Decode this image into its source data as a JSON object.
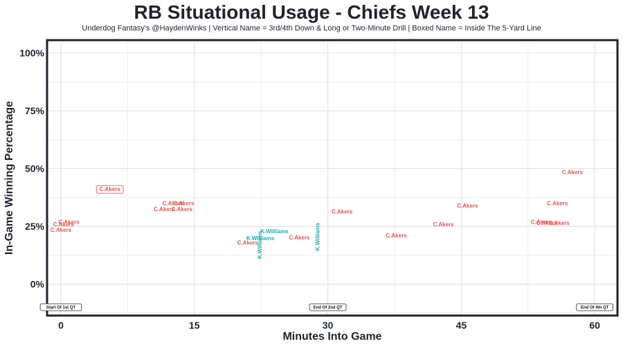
{
  "chart_data": {
    "type": "scatter",
    "title": "RB Situational Usage - Chiefs Week 13",
    "subtitle": "Underdog Fantasy's @HaydenWinks | Vertical Name = 3rd/4th Down & Long or Two-Minute Drill | Boxed Name = Inside The 5-Yard Line",
    "xlabel": "Minutes Into Game",
    "ylabel": "In-Game Winning Percentage",
    "xlim": [
      -1.4,
      62.4
    ],
    "ylim": [
      -13,
      105
    ],
    "x_ticks": [
      0,
      15,
      30,
      45,
      60
    ],
    "x_tick_labels": [
      "0",
      "15",
      "30",
      "45",
      "60"
    ],
    "y_ticks": [
      0,
      25,
      50,
      75,
      100
    ],
    "y_tick_labels": [
      "0%",
      "25%",
      "50%",
      "75%",
      "100%"
    ],
    "grid": true,
    "colors": {
      "C.Akers": "#e8534a",
      "K.Williams": "#1aadb4"
    },
    "points": [
      {
        "x": 0.0,
        "y": 23.5,
        "label": "C.Akers",
        "style": "normal"
      },
      {
        "x": 0.3,
        "y": 26.0,
        "label": "C.Akers",
        "style": "normal"
      },
      {
        "x": 0.9,
        "y": 27.0,
        "label": "C.Akers",
        "style": "normal"
      },
      {
        "x": 5.5,
        "y": 41.0,
        "label": "C.Akers",
        "style": "boxed"
      },
      {
        "x": 11.6,
        "y": 32.5,
        "label": "C.Akers",
        "style": "normal"
      },
      {
        "x": 12.6,
        "y": 35.0,
        "label": "C.Akers",
        "style": "normal"
      },
      {
        "x": 13.6,
        "y": 32.5,
        "label": "C.Akers",
        "style": "normal"
      },
      {
        "x": 13.8,
        "y": 35.0,
        "label": "C.Akers",
        "style": "normal"
      },
      {
        "x": 21.0,
        "y": 18.0,
        "label": "C.Akers",
        "style": "normal"
      },
      {
        "x": 22.4,
        "y": 17.0,
        "label": "K.Williams",
        "style": "vertical"
      },
      {
        "x": 22.4,
        "y": 20.0,
        "label": "K.Williams",
        "style": "normal"
      },
      {
        "x": 24.0,
        "y": 23.0,
        "label": "K.Williams",
        "style": "normal"
      },
      {
        "x": 26.8,
        "y": 20.2,
        "label": "C.Akers",
        "style": "normal"
      },
      {
        "x": 28.9,
        "y": 20.5,
        "label": "K.Williams",
        "style": "vertical"
      },
      {
        "x": 31.6,
        "y": 31.5,
        "label": "C.Akers",
        "style": "normal"
      },
      {
        "x": 37.7,
        "y": 21.2,
        "label": "C.Akers",
        "style": "normal"
      },
      {
        "x": 43.0,
        "y": 26.0,
        "label": "C.Akers",
        "style": "normal"
      },
      {
        "x": 45.7,
        "y": 34.0,
        "label": "C.Akers",
        "style": "normal"
      },
      {
        "x": 54.0,
        "y": 27.0,
        "label": "C.Akers",
        "style": "normal"
      },
      {
        "x": 54.6,
        "y": 26.5,
        "label": "C.Akers",
        "style": "normal"
      },
      {
        "x": 56.0,
        "y": 26.5,
        "label": "C.Akers",
        "style": "normal"
      },
      {
        "x": 55.8,
        "y": 35.0,
        "label": "C.Akers",
        "style": "normal"
      },
      {
        "x": 57.5,
        "y": 48.5,
        "label": "C.Akers",
        "style": "normal"
      }
    ],
    "annotations": [
      {
        "x": 0.0,
        "y": -10.0,
        "label": "Start Of 1st QT"
      },
      {
        "x": 30.0,
        "y": -10.0,
        "label": "End Of 2nd QT"
      },
      {
        "x": 60.0,
        "y": -10.0,
        "label": "End Of 4th QT"
      }
    ]
  }
}
